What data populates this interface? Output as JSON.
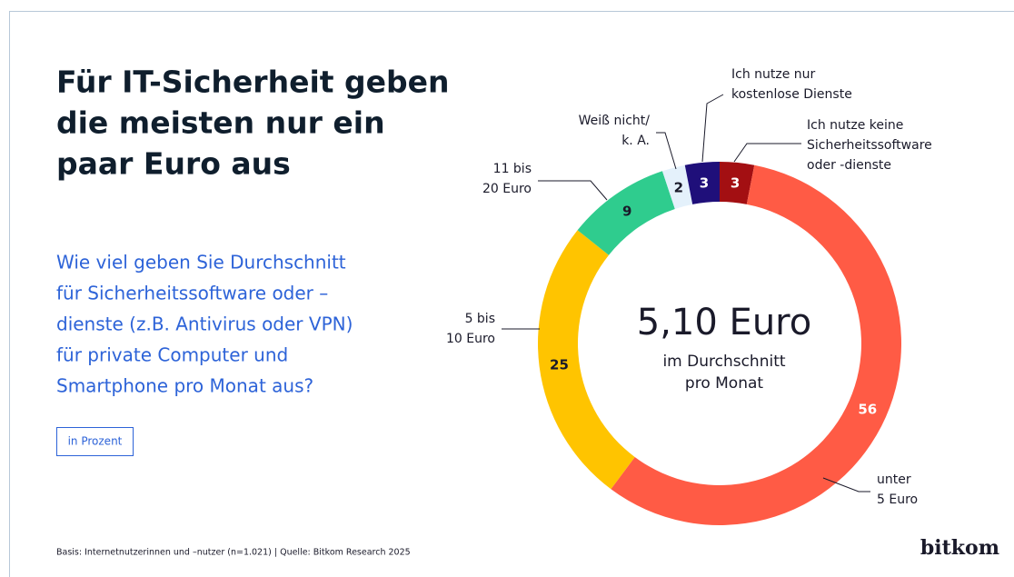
{
  "chart_data": {
    "type": "donut",
    "title": [
      "Für IT-Sicherheit geben",
      "die meisten nur ein",
      "paar Euro aus"
    ],
    "subtitle": [
      "Wie viel geben Sie Durchschnitt",
      "für Sicherheitssoftware oder –",
      "dienste (z.B. Antivirus oder VPN)",
      "für private Computer und",
      "Smartphone pro Monat aus?"
    ],
    "unit_note": "in Prozent",
    "center_text": [
      "5,10 Euro",
      "im Durchschnitt",
      "pro Monat"
    ],
    "source": "Basis: Internetnutzerinnen und –nutzer  (n=1.021) | Quelle: Bitkom Research 2025",
    "brand": "bitkom",
    "categories": [
      [
        "Ich nutze keine",
        "Sicherheitssoftware",
        "oder -dienste"
      ],
      [
        "unter",
        "5 Euro"
      ],
      [
        "5 bis",
        "10 Euro"
      ],
      [
        "11 bis",
        "20 Euro"
      ],
      [
        "Weiß nicht/",
        "k. A."
      ],
      [
        "Ich nutze nur",
        "kostenlose Dienste"
      ]
    ],
    "values": [
      3,
      56,
      25,
      9,
      2,
      3
    ],
    "colors": [
      "#a30f12",
      "#ff5b45",
      "#ffc400",
      "#2fcc8e",
      "#e4f1fb",
      "#1f0f7a"
    ],
    "value_text_colors": [
      "#ffffff",
      "#ffffff",
      "#1a1a2a",
      "#1a1a2a",
      "#1a1a2a",
      "#ffffff"
    ]
  }
}
